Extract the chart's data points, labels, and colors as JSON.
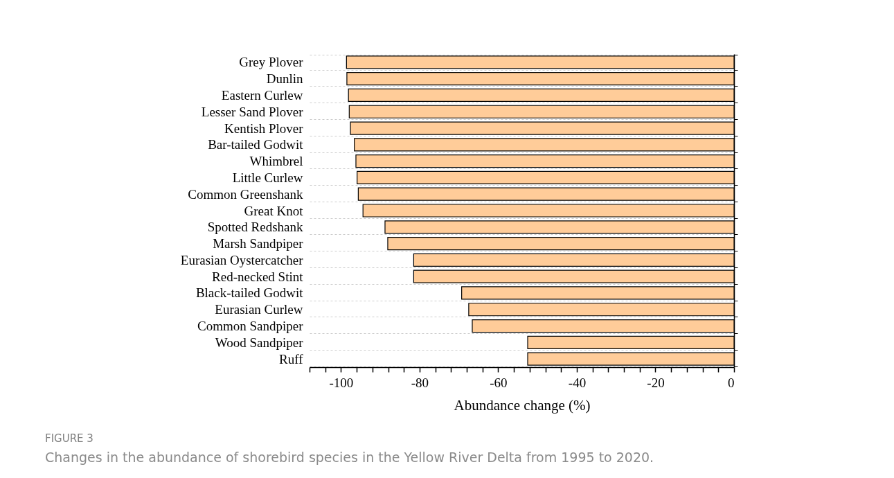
{
  "chart_data": {
    "type": "bar",
    "orientation": "horizontal",
    "xlabel": "Abundance change (%)",
    "categories": [
      "Grey Plover",
      "Dunlin",
      "Eastern Curlew",
      "Lesser Sand Plover",
      "Kentish Plover",
      "Bar-tailed Godwit",
      "Whimbrel",
      "Little Curlew",
      "Common Greenshank",
      "Great Knot",
      "Spotted Redshank",
      "Marsh Sandpiper ",
      "Eurasian Oystercatcher",
      "Red-necked Stint",
      "Black-tailed Godwit",
      "Eurasian Curlew ",
      "Common Sandpiper",
      "Wood Sandpiper",
      "Ruff"
    ],
    "values": [
      -98.6,
      -98.5,
      -98.1,
      -97.9,
      -97.6,
      -96.6,
      -96.2,
      -95.9,
      -95.6,
      -94.4,
      -88.8,
      -88.1,
      -81.5,
      -81.5,
      -69.3,
      -67.5,
      -66.6,
      -52.5,
      -52.5
    ],
    "color": "#ffcc99",
    "xlim": [
      -108,
      0
    ],
    "xticks": [
      {
        "value": -108,
        "label": null
      },
      {
        "value": -104,
        "label": null
      },
      -100,
      {
        "value": -96,
        "label": null
      },
      {
        "value": -92,
        "label": null
      },
      {
        "value": -88,
        "label": null
      },
      {
        "value": -84,
        "label": null
      },
      -80,
      {
        "value": -76,
        "label": null
      },
      {
        "value": -72,
        "label": null
      },
      {
        "value": -68,
        "label": null
      },
      {
        "value": -64,
        "label": null
      },
      -60,
      {
        "value": -56,
        "label": null
      },
      {
        "value": -52,
        "label": null
      },
      {
        "value": -48,
        "label": null
      },
      {
        "value": -44,
        "label": null
      },
      -40,
      {
        "value": -36,
        "label": null
      },
      {
        "value": -32,
        "label": null
      },
      {
        "value": -28,
        "label": null
      },
      {
        "value": -24,
        "label": null
      },
      -20,
      {
        "value": -16,
        "label": null
      },
      {
        "value": -12,
        "label": null
      },
      {
        "value": -8,
        "label": null
      },
      {
        "value": -4,
        "label": null
      },
      0
    ],
    "grid": "y",
    "annotations": [
      "FIGURE 3",
      "Changes in the abundance of shorebird species in the Yellow River Delta from 1995 to 2020."
    ]
  }
}
